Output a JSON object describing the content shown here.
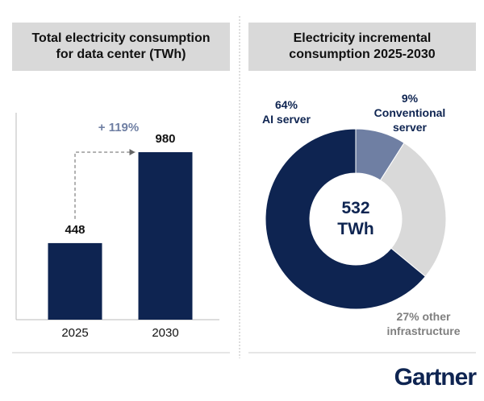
{
  "chart_data": [
    {
      "type": "bar",
      "title": "Total electricity consumption for data center (TWh)",
      "categories": [
        "2025",
        "2030"
      ],
      "values": [
        448,
        980
      ],
      "color": "#0e2451",
      "annotation": "+ 119%"
    },
    {
      "type": "pie",
      "title": "Electricity incremental consumption 2025-2030",
      "categories": [
        "Conventional server",
        "other infrastructure",
        "AI server"
      ],
      "values": [
        9,
        27,
        64
      ],
      "value_labels": [
        "9%",
        "27%",
        "64%"
      ],
      "colors": [
        "#6f7fa3",
        "#d9d9d9",
        "#0e2451"
      ],
      "center_label": "532 TWh"
    }
  ],
  "brand": "Gartner"
}
